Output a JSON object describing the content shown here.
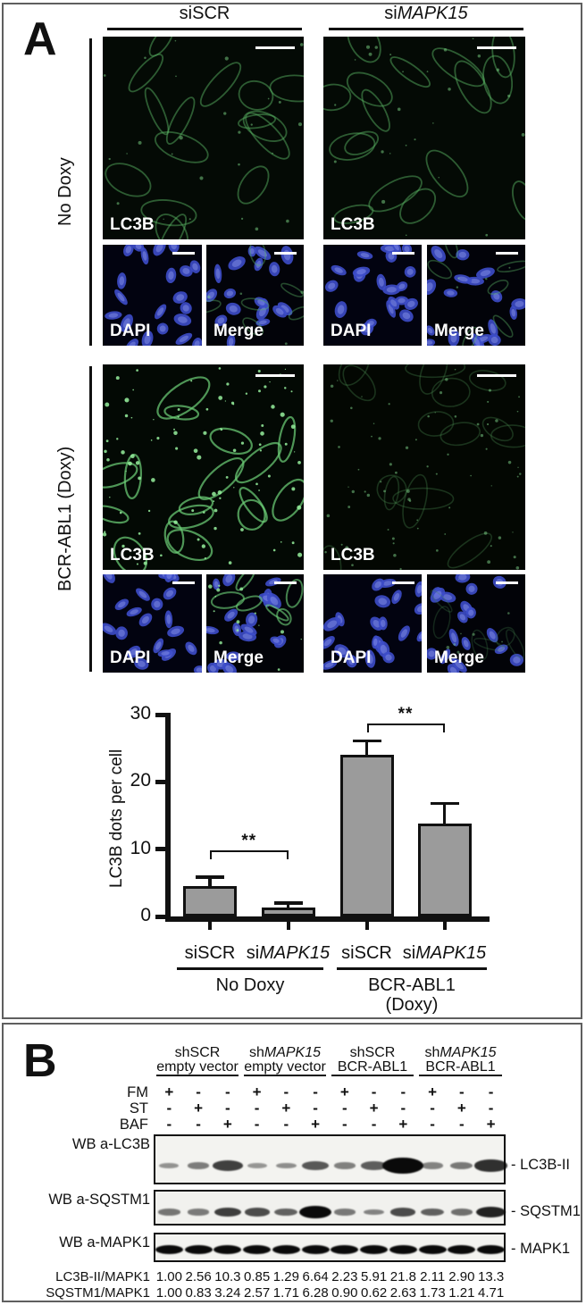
{
  "panelA": {
    "label": "A",
    "col_headers": [
      {
        "pre": "siSCR",
        "it": ""
      },
      {
        "pre": "si",
        "it": "MAPK15"
      }
    ],
    "row_labels": [
      "No Doxy",
      "BCR-ABL1 (Doxy)"
    ],
    "tile_labels": {
      "lc3b": "LC3B",
      "dapi": "DAPI",
      "merge": "Merge"
    },
    "chart_data": {
      "type": "bar",
      "title": "",
      "xlabel": "",
      "ylabel": "LC3B dots per cell",
      "ylim": [
        0,
        30
      ],
      "yticks": [
        0,
        10,
        20,
        30
      ],
      "grid": false,
      "legend": null,
      "bar_color": "#9b9b9b",
      "categories": [
        {
          "pre": "siSCR",
          "it": ""
        },
        {
          "pre": "si",
          "it": "MAPK15"
        },
        {
          "pre": "siSCR",
          "it": ""
        },
        {
          "pre": "si",
          "it": "MAPK15"
        }
      ],
      "values": [
        4.5,
        1.3,
        24.0,
        13.8
      ],
      "errors": [
        1.4,
        0.7,
        2.1,
        3.0
      ],
      "groups": [
        {
          "label_lines": [
            "No Doxy"
          ],
          "span": [
            0,
            1
          ]
        },
        {
          "label_lines": [
            "BCR-ABL1",
            "(Doxy)"
          ],
          "span": [
            2,
            3
          ]
        }
      ],
      "significance": [
        {
          "between": [
            0,
            1
          ],
          "label": "**",
          "bar_y": 9.8
        },
        {
          "between": [
            2,
            3
          ],
          "label": "**",
          "bar_y": 28.7
        }
      ]
    }
  },
  "panelB": {
    "label": "B",
    "groups": [
      {
        "line1": {
          "pre": "shSCR",
          "it": ""
        },
        "line2": "empty vector"
      },
      {
        "line1": {
          "pre": "sh",
          "it": "MAPK15"
        },
        "line2": "empty vector"
      },
      {
        "line1": {
          "pre": "shSCR",
          "it": ""
        },
        "line2": "BCR-ABL1"
      },
      {
        "line1": {
          "pre": "sh",
          "it": "MAPK15"
        },
        "line2": "BCR-ABL1"
      }
    ],
    "treatments": [
      {
        "label": "FM",
        "signs": [
          "+",
          "-",
          "-",
          "+",
          "-",
          "-",
          "+",
          "-",
          "-",
          "+",
          "-",
          "-"
        ]
      },
      {
        "label": "ST",
        "signs": [
          "-",
          "+",
          "-",
          "-",
          "+",
          "-",
          "-",
          "+",
          "-",
          "-",
          "+",
          "-"
        ]
      },
      {
        "label": "BAF",
        "signs": [
          "-",
          "-",
          "+",
          "-",
          "-",
          "+",
          "-",
          "-",
          "+",
          "-",
          "-",
          "+"
        ]
      }
    ],
    "blots": [
      {
        "label": "WB a-LC3B",
        "marker": "- LC3B-II",
        "quant_index": 0
      },
      {
        "label": "WB a-SQSTM1",
        "marker": "- SQSTM1",
        "quant_index": 1
      },
      {
        "label": "WB a-MAPK1",
        "marker": "- MAPK1",
        "quant_index": null
      }
    ],
    "quant_rows": [
      {
        "label": "LC3B-II/MAPK1",
        "values": [
          "1.00",
          "2.56",
          "10.3",
          "0.85",
          "1.29",
          "6.64",
          "2.23",
          "5.91",
          "21.8",
          "2.11",
          "2.90",
          "13.3"
        ]
      },
      {
        "label": "SQSTM1/MAPK1",
        "values": [
          "1.00",
          "0.83",
          "3.24",
          "2.57",
          "1.71",
          "6.28",
          "0.90",
          "0.62",
          "2.63",
          "1.73",
          "1.21",
          "4.71"
        ]
      }
    ]
  }
}
